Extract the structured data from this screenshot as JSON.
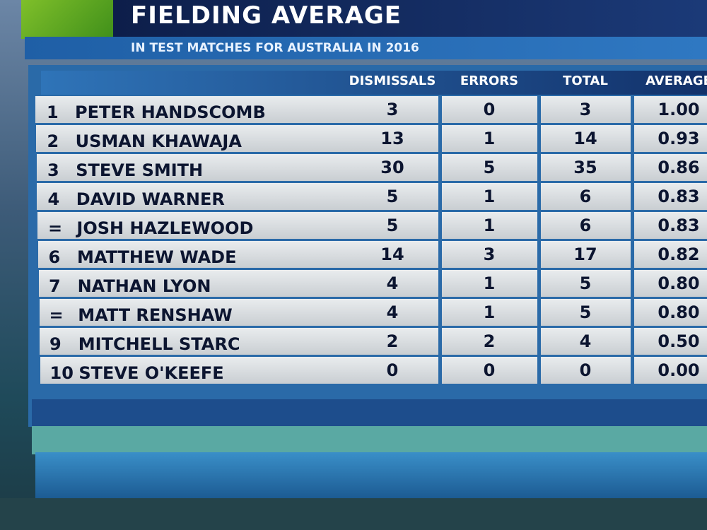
{
  "header": {
    "title": "FIELDING AVERAGE",
    "subtitle": "IN TEST MATCHES FOR AUSTRALIA IN 2016"
  },
  "table": {
    "columns": [
      "DISMISSALS",
      "ERRORS",
      "TOTAL",
      "AVERAGE"
    ],
    "rows": [
      [
        "1",
        "PETER HANDSCOMB",
        "3",
        "0",
        "3",
        "1.00"
      ],
      [
        "2",
        "USMAN KHAWAJA",
        "13",
        "1",
        "14",
        "0.93"
      ],
      [
        "3",
        "STEVE SMITH",
        "30",
        "5",
        "35",
        "0.86"
      ],
      [
        "4",
        "DAVID WARNER",
        "5",
        "1",
        "6",
        "0.83"
      ],
      [
        "=",
        "JOSH HAZLEWOOD",
        "5",
        "1",
        "6",
        "0.83"
      ],
      [
        "6",
        "MATTHEW WADE",
        "14",
        "3",
        "17",
        "0.82"
      ],
      [
        "7",
        "NATHAN LYON",
        "4",
        "1",
        "5",
        "0.80"
      ],
      [
        "=",
        "MATT RENSHAW",
        "4",
        "1",
        "5",
        "0.80"
      ],
      [
        "9",
        "MITCHELL STARC",
        "2",
        "2",
        "4",
        "0.50"
      ],
      [
        "10",
        "STEVE O'KEEFE",
        "0",
        "0",
        "0",
        "0.00"
      ]
    ]
  }
}
